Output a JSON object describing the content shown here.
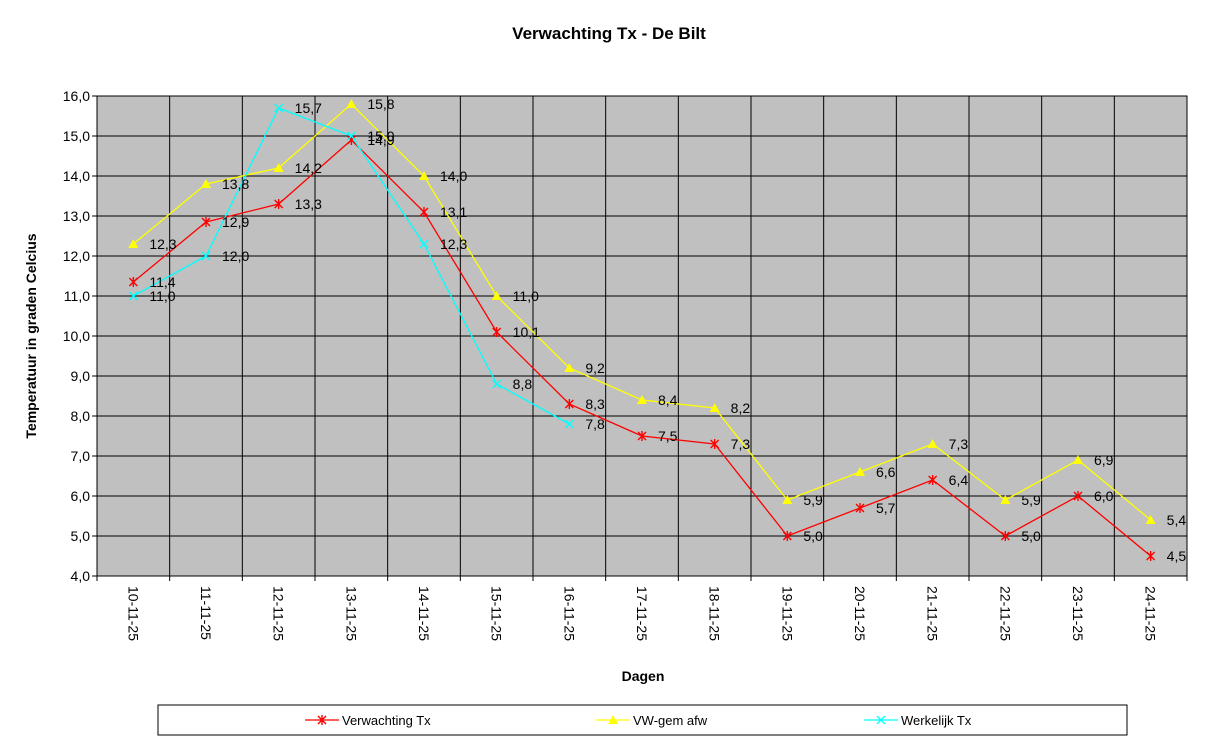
{
  "chart_data": {
    "type": "line",
    "title": "Verwachting Tx - De Bilt",
    "xlabel": "Dagen",
    "ylabel": "Temperatuur in graden Celcius",
    "ylim": [
      4.0,
      16.0
    ],
    "ytick_step": 1.0,
    "ytick_labels": [
      "4,0",
      "5,0",
      "6,0",
      "7,0",
      "8,0",
      "9,0",
      "10,0",
      "11,0",
      "12,0",
      "13,0",
      "14,0",
      "15,0",
      "16,0"
    ],
    "grid": true,
    "plot_background": "#c0c0c0",
    "legend_position": "bottom",
    "categories": [
      "10-11-25",
      "11-11-25",
      "12-11-25",
      "13-11-25",
      "14-11-25",
      "15-11-25",
      "16-11-25",
      "17-11-25",
      "18-11-25",
      "19-11-25",
      "20-11-25",
      "21-11-25",
      "22-11-25",
      "23-11-25",
      "24-11-25"
    ],
    "series": [
      {
        "name": "Verwachting Tx",
        "color": "#ff0000",
        "marker": "asterisk",
        "values": [
          11.35,
          12.85,
          13.3,
          14.9,
          13.1,
          10.1,
          8.3,
          7.5,
          7.3,
          5.0,
          5.7,
          6.4,
          5.0,
          6.0,
          4.5
        ],
        "labels": [
          "11,4",
          "12,9",
          "13,3",
          "14,9",
          "13,1",
          "10,1",
          "8,3",
          "7,5",
          "7,3",
          "5,0",
          "5,7",
          "6,4",
          "5,0",
          "6,0",
          "4,5"
        ]
      },
      {
        "name": "VW-gem afw",
        "color": "#ffff00",
        "marker": "triangle",
        "values": [
          12.3,
          13.8,
          14.2,
          15.8,
          14.0,
          11.0,
          9.2,
          8.4,
          8.2,
          5.9,
          6.6,
          7.3,
          5.9,
          6.9,
          5.4
        ],
        "labels": [
          "12,3",
          "13,8",
          "14,2",
          "15,8",
          "14,0",
          "11,0",
          "9,2",
          "8,4",
          "8,2",
          "5,9",
          "6,6",
          "7,3",
          "5,9",
          "6,9",
          "5,4"
        ]
      },
      {
        "name": "Werkelijk Tx",
        "color": "#00ffff",
        "marker": "x",
        "values": [
          11.0,
          12.0,
          15.7,
          15.0,
          12.3,
          8.8,
          7.8,
          null,
          null,
          null,
          null,
          null,
          null,
          null,
          null
        ],
        "labels": [
          "11,0",
          "12,0",
          "15,7",
          "15,0",
          "12,3",
          "8,8",
          "7,8",
          null,
          null,
          null,
          null,
          null,
          null,
          null,
          null
        ]
      }
    ]
  }
}
